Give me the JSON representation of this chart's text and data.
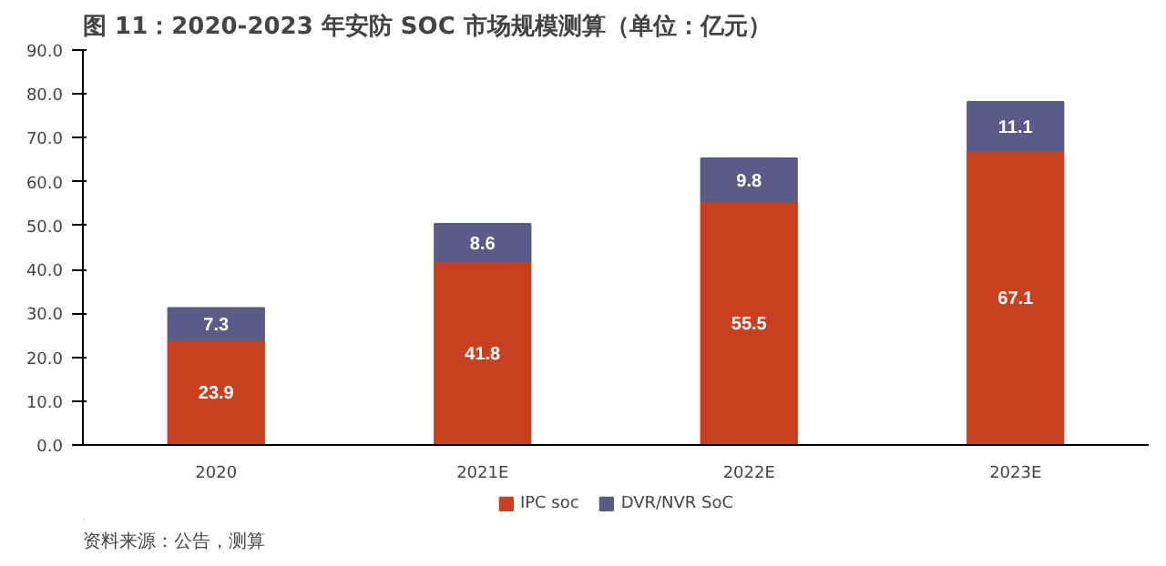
{
  "chart_data": {
    "type": "bar",
    "title": "图 11：2020-2023 年安防 SOC 市场规模测算（单位：亿元）",
    "categories": [
      "2020",
      "2021E",
      "2022E",
      "2023E"
    ],
    "stacked": true,
    "data_labels": true,
    "legend": "bottom",
    "grid": false,
    "series": [
      {
        "name": "IPC soc",
        "color": "#c8401f",
        "values": [
          23.9,
          41.8,
          55.5,
          67.1
        ]
      },
      {
        "name": "DVR/NVR SoC",
        "color": "#5a5b87",
        "values": [
          7.3,
          8.6,
          9.8,
          11.1
        ]
      }
    ],
    "ylim": [
      0,
      90
    ],
    "yticks": [
      {
        "value": 0,
        "label": "0.0"
      },
      {
        "value": 10,
        "label": "10.0"
      },
      {
        "value": 20,
        "label": "20.0"
      },
      {
        "value": 30,
        "label": "30.0"
      },
      {
        "value": 40,
        "label": "40.0"
      },
      {
        "value": 50,
        "label": "50.0"
      },
      {
        "value": 60,
        "label": "60.0"
      },
      {
        "value": 70,
        "label": "70.0"
      },
      {
        "value": 80,
        "label": "80.0"
      },
      {
        "value": 90,
        "label": "90.0"
      }
    ],
    "annotations": [
      "资料来源：公告，测算"
    ]
  }
}
